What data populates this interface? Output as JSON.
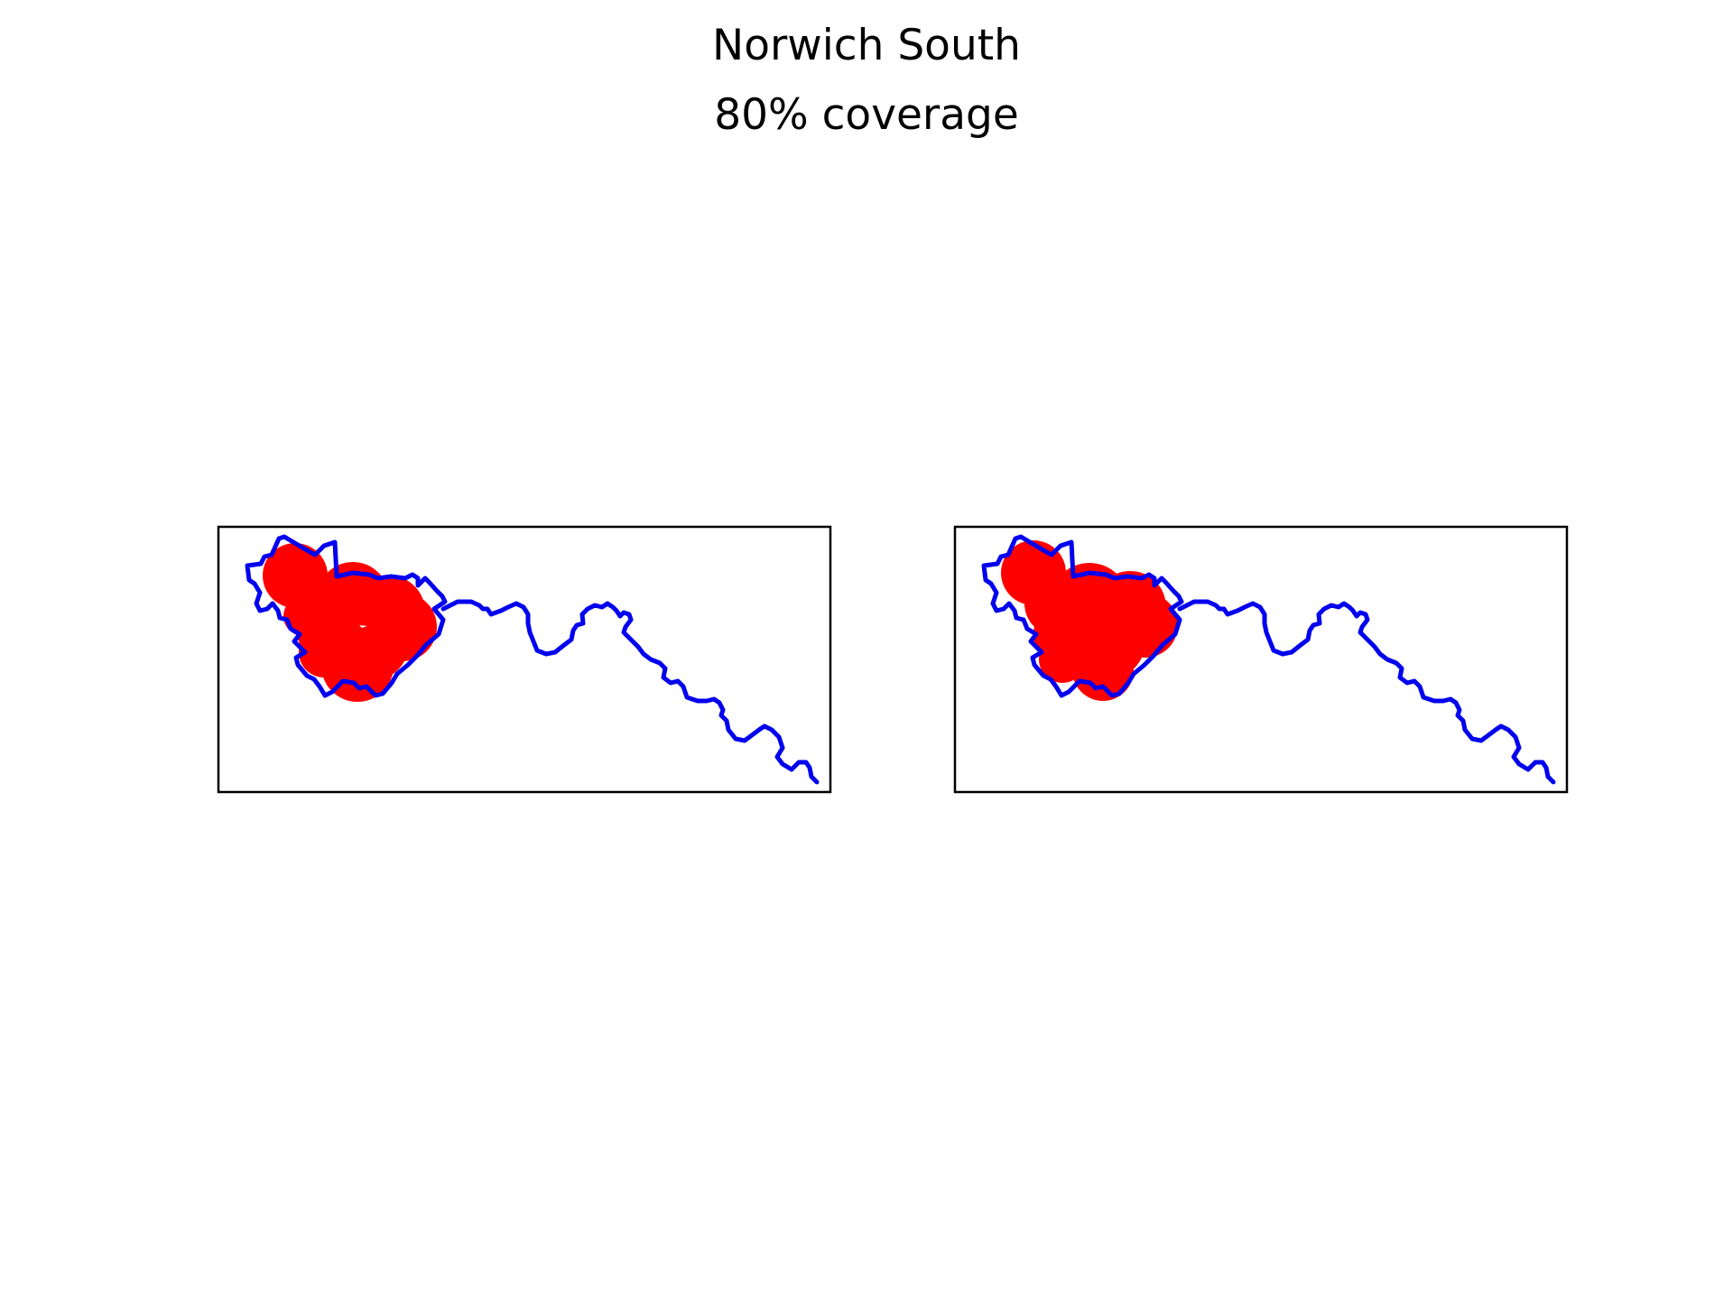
{
  "figure": {
    "title": "Norwich South",
    "subtitle": "80% coverage"
  },
  "colors": {
    "boundary": "#0000ee",
    "coverage": "#ff0000",
    "frame": "#000000"
  },
  "panels": [
    {
      "coverage_style": "overlapping-circles"
    },
    {
      "coverage_style": "filled-area"
    }
  ]
}
